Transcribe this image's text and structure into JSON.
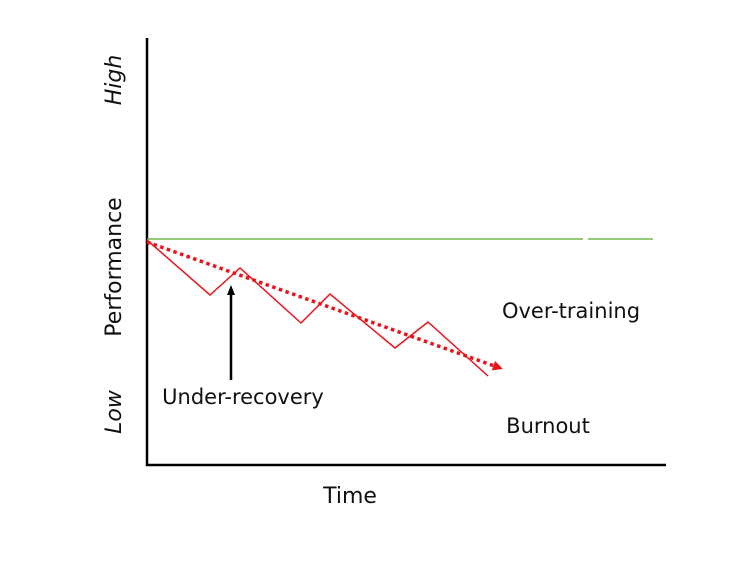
{
  "diagram": {
    "x_axis_label": "Time",
    "y_axis_label": "Performance",
    "y_high_label": "High",
    "y_low_label": "Low",
    "annotations": {
      "under_recovery": "Under-recovery",
      "over_training": "Over-training",
      "burnout": "Burnout"
    }
  },
  "colors": {
    "axis": "#000000",
    "baseline": "#70b84a",
    "performance": "#e8141b",
    "arrow": "#000000",
    "text": "#111111"
  }
}
